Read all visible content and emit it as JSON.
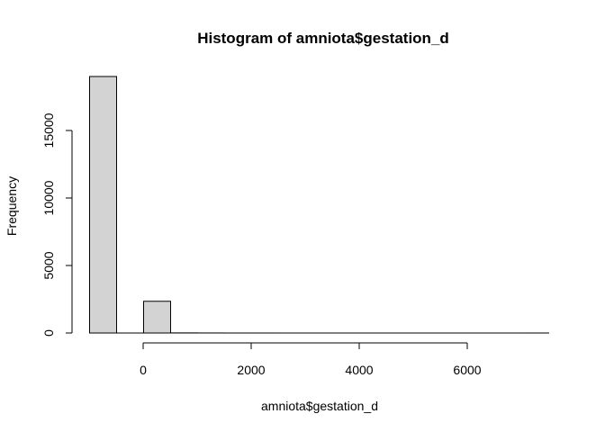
{
  "chart_data": {
    "type": "bar",
    "title": "Histogram of amniota$gestation_d",
    "xlabel": "amniota$gestation_d",
    "ylabel": "Frequency",
    "bins": [
      {
        "start": -1000,
        "end": -500,
        "count": 19000
      },
      {
        "start": 0,
        "end": 500,
        "count": 2350
      },
      {
        "start": 500,
        "end": 1000,
        "count": 8
      },
      {
        "start": 1000,
        "end": 1500,
        "count": 3
      },
      {
        "start": 1500,
        "end": 2000,
        "count": 1
      },
      {
        "start": 2000,
        "end": 2500,
        "count": 1
      },
      {
        "start": 2500,
        "end": 3000,
        "count": 0
      },
      {
        "start": 3000,
        "end": 3500,
        "count": 0
      },
      {
        "start": 3500,
        "end": 4000,
        "count": 0
      },
      {
        "start": 4000,
        "end": 4500,
        "count": 0
      },
      {
        "start": 4500,
        "end": 5000,
        "count": 0
      },
      {
        "start": 5000,
        "end": 5500,
        "count": 0
      },
      {
        "start": 5500,
        "end": 6000,
        "count": 0
      },
      {
        "start": 6000,
        "end": 6500,
        "count": 0
      },
      {
        "start": 6500,
        "end": 7000,
        "count": 0
      },
      {
        "start": 7000,
        "end": 7500,
        "count": 1
      }
    ],
    "x_ticks": [
      0,
      2000,
      4000,
      6000
    ],
    "x_tick_labels": [
      "0",
      "2000",
      "4000",
      "6000"
    ],
    "y_ticks": [
      0,
      5000,
      10000,
      15000
    ],
    "y_tick_labels": [
      "0",
      "5000",
      "10000",
      "15000"
    ],
    "xlim": [
      -1000,
      7500
    ],
    "ylim": [
      0,
      19000
    ],
    "bar_fill": "#d3d3d3",
    "bar_stroke": "#000000",
    "grid": false
  }
}
